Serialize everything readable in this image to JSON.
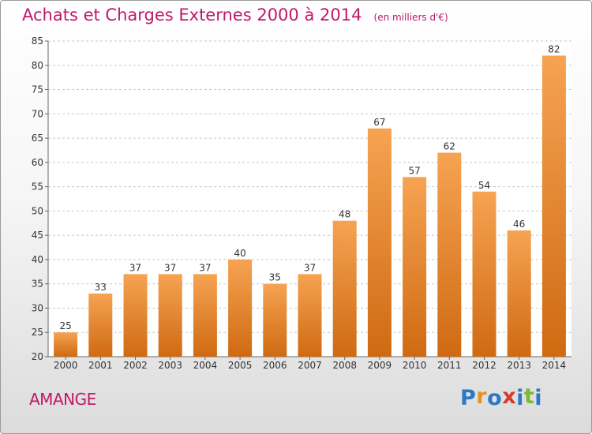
{
  "title": "Achats et Charges Externes 2000 à 2014",
  "unit": "(en milliers d'€)",
  "town": "AMANGE",
  "logo": {
    "letters": [
      "P",
      "r",
      "o",
      "x",
      "i",
      "t",
      "i"
    ],
    "colors": [
      "#2a78c6",
      "#e8901e",
      "#2a78c6",
      "#d43a2a",
      "#2a78c6",
      "#7cb83a",
      "#2a78c6"
    ]
  },
  "colors": {
    "bar_top": "#f6a352",
    "bar_bottom": "#cf6a12",
    "title": "#c0186a"
  },
  "chart_data": {
    "type": "bar",
    "categories": [
      "2000",
      "2001",
      "2002",
      "2003",
      "2004",
      "2005",
      "2006",
      "2007",
      "2008",
      "2009",
      "2010",
      "2011",
      "2012",
      "2013",
      "2014"
    ],
    "values": [
      25,
      33,
      37,
      37,
      37,
      40,
      35,
      37,
      48,
      67,
      57,
      62,
      54,
      46,
      82
    ],
    "ylim": [
      20,
      85
    ],
    "yticks": [
      20,
      25,
      30,
      35,
      40,
      45,
      50,
      55,
      60,
      65,
      70,
      75,
      80,
      85
    ],
    "grid": true
  }
}
